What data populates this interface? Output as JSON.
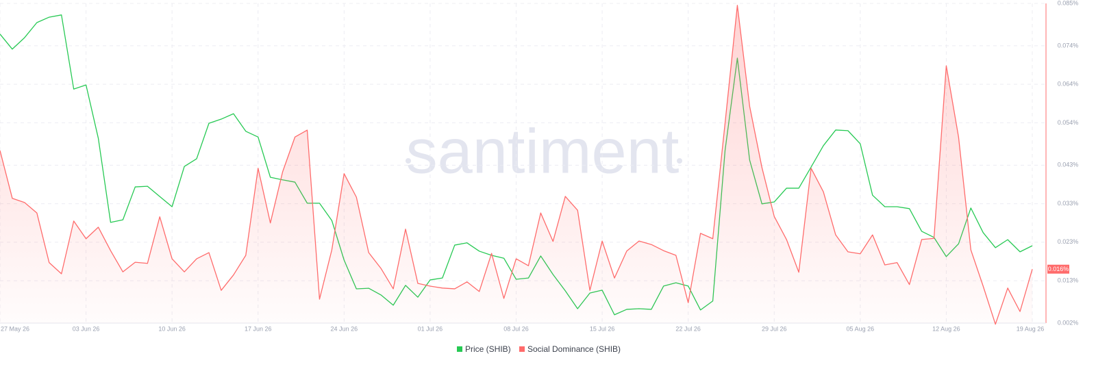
{
  "chart_data": {
    "type": "line",
    "watermark": "santiment",
    "categories": [
      "27 May 26",
      null,
      null,
      null,
      null,
      null,
      null,
      "03 Jun 26",
      null,
      null,
      null,
      null,
      null,
      null,
      "10 Jun 26",
      null,
      null,
      null,
      null,
      null,
      null,
      "17 Jun 26",
      null,
      null,
      null,
      null,
      null,
      null,
      "24 Jun 26",
      null,
      null,
      null,
      null,
      null,
      null,
      "01 Jul 26",
      null,
      null,
      null,
      null,
      null,
      null,
      "08 Jul 26",
      null,
      null,
      null,
      null,
      null,
      null,
      "15 Jul 26",
      null,
      null,
      null,
      null,
      null,
      null,
      "22 Jul 26",
      null,
      null,
      null,
      null,
      null,
      null,
      "29 Jul 26",
      null,
      null,
      null,
      null,
      null,
      null,
      "05 Aug 26",
      null,
      null,
      null,
      null,
      null,
      null,
      "12 Aug 26",
      null,
      null,
      null,
      null,
      null,
      null,
      "19 Aug 26"
    ],
    "ylim": [
      0,
      100
    ],
    "y2lim": [
      0.002,
      0.085
    ],
    "y2ticks": [
      {
        "value": 0.002,
        "label": "0.002%"
      },
      {
        "value": 0.013,
        "label": "0.013%"
      },
      {
        "value": 0.023,
        "label": "0.023%"
      },
      {
        "value": 0.033,
        "label": "0.033%"
      },
      {
        "value": 0.043,
        "label": "0.043%"
      },
      {
        "value": 0.054,
        "label": "0.054%"
      },
      {
        "value": 0.064,
        "label": "0.064%"
      },
      {
        "value": 0.074,
        "label": "0.074%"
      },
      {
        "value": 0.085,
        "label": "0.085%"
      }
    ],
    "grid": true,
    "series": [
      {
        "name": "Price (SHIB)",
        "color": "#26c953",
        "values": [
          90.4,
          85.7,
          89.3,
          94.0,
          95.7,
          96.4,
          73.2,
          74.5,
          57.8,
          31.5,
          32.3,
          42.6,
          42.8,
          39.6,
          36.4,
          49.0,
          51.4,
          62.5,
          63.8,
          65.5,
          60.0,
          58.2,
          45.6,
          44.8,
          44.1,
          37.5,
          37.5,
          32.1,
          19.7,
          10.7,
          10.9,
          8.8,
          5.6,
          11.8,
          8.1,
          13.5,
          14.1,
          24.4,
          25.1,
          22.5,
          21.2,
          20.3,
          13.7,
          14.1,
          21.0,
          15.2,
          10.1,
          4.5,
          9.4,
          10.3,
          2.6,
          4.3,
          4.5,
          4.3,
          11.6,
          12.6,
          11.6,
          4.1,
          6.9,
          54.0,
          82.9,
          51.0,
          37.3,
          37.9,
          42.2,
          42.2,
          48.8,
          55.5,
          60.4,
          60.2,
          56.1,
          40.0,
          36.4,
          36.4,
          35.8,
          28.7,
          26.8,
          20.8,
          24.8,
          36.0,
          28.3,
          23.6,
          26.1,
          22.3,
          24.2
        ]
      },
      {
        "name": "Social Dominance (SHIB)",
        "color": "#ff6b6b",
        "axis": "y2",
        "values": [
          0.0468,
          0.0344,
          0.0333,
          0.0306,
          0.0177,
          0.0148,
          0.0285,
          0.0239,
          0.0269,
          0.0208,
          0.0153,
          0.0178,
          0.0175,
          0.0296,
          0.0187,
          0.0153,
          0.0187,
          0.0203,
          0.0105,
          0.0145,
          0.0196,
          0.0422,
          0.028,
          0.0413,
          0.0503,
          0.0521,
          0.0082,
          0.021,
          0.0408,
          0.0347,
          0.0203,
          0.0162,
          0.0109,
          0.0264,
          0.0123,
          0.0116,
          0.0111,
          0.0109,
          0.0127,
          0.0102,
          0.0201,
          0.0084,
          0.0187,
          0.0169,
          0.0306,
          0.0232,
          0.0349,
          0.0313,
          0.0105,
          0.0233,
          0.0137,
          0.0207,
          0.0233,
          0.0224,
          0.0208,
          0.0196,
          0.0073,
          0.0253,
          0.0239,
          0.0539,
          0.0845,
          0.0583,
          0.0424,
          0.0297,
          0.0237,
          0.0152,
          0.0422,
          0.0361,
          0.0249,
          0.0205,
          0.02,
          0.0249,
          0.0171,
          0.0177,
          0.012,
          0.0237,
          0.024,
          0.0688,
          0.0503,
          0.021,
          0.0116,
          0.0017,
          0.0111,
          0.005,
          0.016
        ],
        "value_labels": [
          null,
          null,
          null,
          null,
          null,
          null,
          null,
          null,
          null,
          null,
          null,
          null,
          null,
          null,
          null,
          null,
          null,
          null,
          null,
          null,
          null,
          null,
          null,
          null,
          null,
          null,
          null,
          null,
          null,
          null,
          null,
          null,
          null,
          null,
          null,
          null,
          null,
          null,
          null,
          null,
          null,
          null,
          null,
          null,
          null,
          null,
          null,
          null,
          null,
          null,
          null,
          null,
          null,
          null,
          null,
          null,
          null,
          null,
          null,
          null,
          null,
          null,
          null,
          null,
          null,
          null,
          null,
          null,
          null,
          null,
          null,
          null,
          null,
          null,
          null,
          null,
          null,
          null,
          null,
          null,
          null,
          null,
          null,
          null,
          "0.016%"
        ]
      }
    ]
  }
}
